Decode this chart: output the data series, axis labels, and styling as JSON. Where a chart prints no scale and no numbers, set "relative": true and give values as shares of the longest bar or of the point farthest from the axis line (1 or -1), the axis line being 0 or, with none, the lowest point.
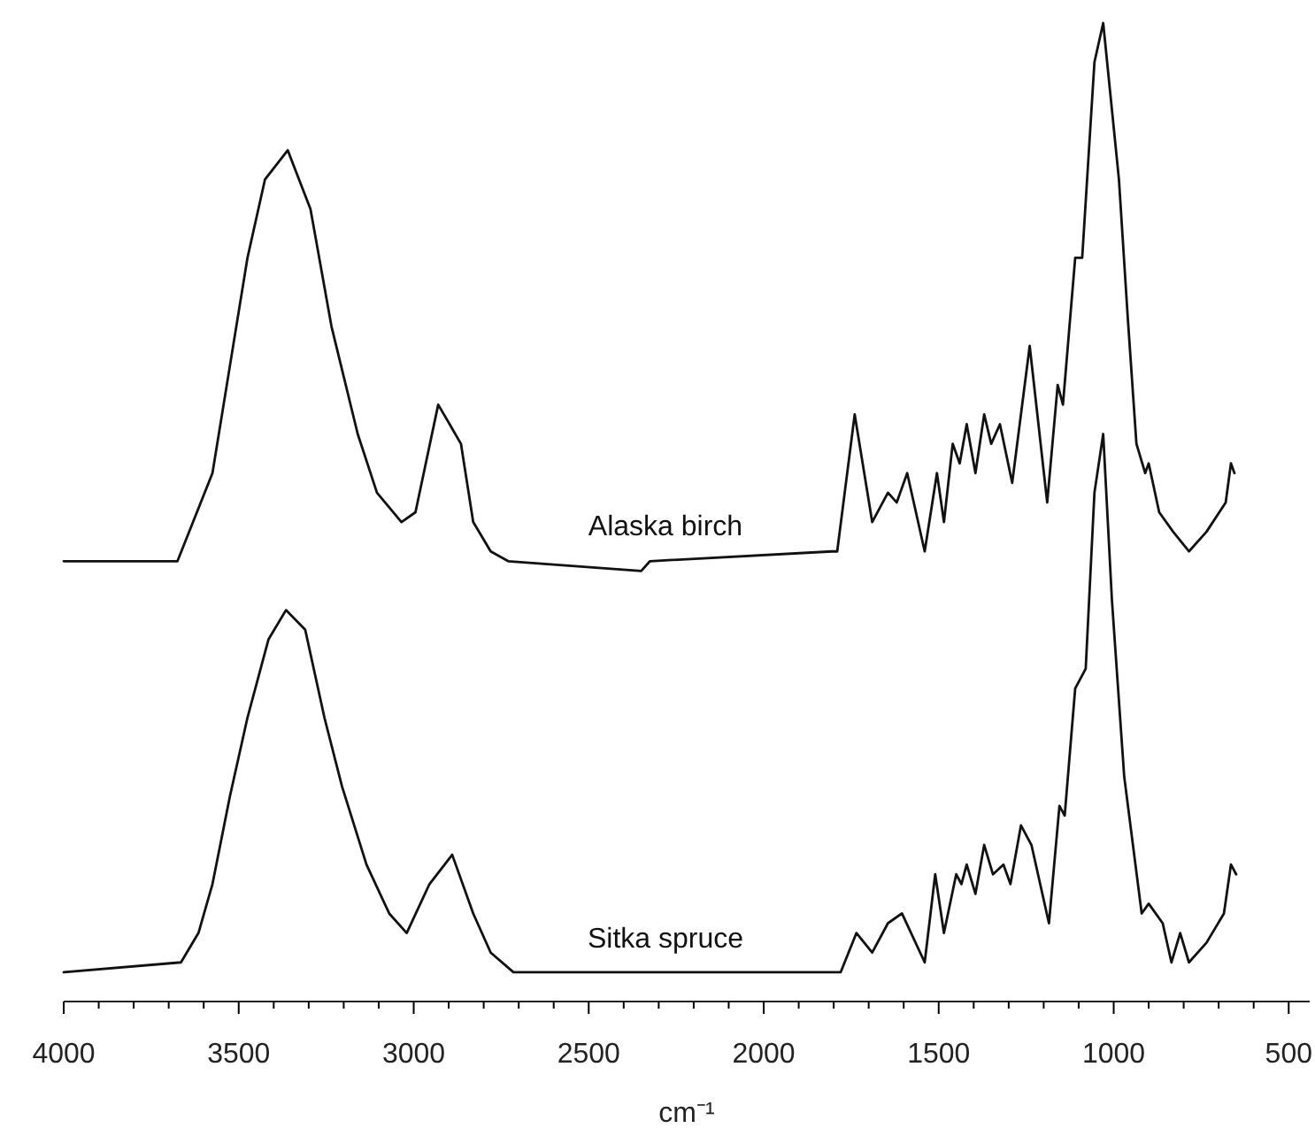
{
  "chart_data": {
    "type": "line",
    "relative": true,
    "xlabel": "cm⁻¹",
    "xlim": [
      4000,
      440
    ],
    "xticks": [
      4000,
      {
        "value": 3900,
        "label": null
      },
      {
        "value": 3800,
        "label": null
      },
      {
        "value": 3700,
        "label": null
      },
      {
        "value": 3600,
        "label": null
      },
      3500,
      {
        "value": 3400,
        "label": null
      },
      {
        "value": 3300,
        "label": null
      },
      {
        "value": 3200,
        "label": null
      },
      {
        "value": 3100,
        "label": null
      },
      3000,
      {
        "value": 2900,
        "label": null
      },
      {
        "value": 2800,
        "label": null
      },
      {
        "value": 2700,
        "label": null
      },
      {
        "value": 2600,
        "label": null
      },
      2500,
      {
        "value": 2400,
        "label": null
      },
      {
        "value": 2300,
        "label": null
      },
      {
        "value": 2200,
        "label": null
      },
      {
        "value": 2100,
        "label": null
      },
      2000,
      {
        "value": 1900,
        "label": null
      },
      {
        "value": 1800,
        "label": null
      },
      {
        "value": 1700,
        "label": null
      },
      {
        "value": 1600,
        "label": null
      },
      1500,
      {
        "value": 1400,
        "label": null
      },
      {
        "value": 1300,
        "label": null
      },
      {
        "value": 1200,
        "label": null
      },
      {
        "value": 1100,
        "label": null
      },
      1000,
      {
        "value": 900,
        "label": null
      },
      {
        "value": 800,
        "label": null
      },
      {
        "value": 700,
        "label": null
      },
      {
        "value": 600,
        "label": null
      },
      500
    ],
    "grid": false,
    "legend": false,
    "marker": "none",
    "line_style": "solid",
    "series": [
      {
        "name": "Alaska birch",
        "color": "#111111",
        "x": [
          4000,
          3690,
          3675,
          3575,
          3525,
          3475,
          3425,
          3360,
          3295,
          3235,
          3160,
          3105,
          3035,
          2995,
          2930,
          2865,
          2830,
          2780,
          2730,
          2350,
          2325,
          1805,
          1790,
          1740,
          1690,
          1645,
          1620,
          1590,
          1540,
          1505,
          1485,
          1460,
          1440,
          1420,
          1395,
          1370,
          1350,
          1325,
          1290,
          1240,
          1190,
          1160,
          1145,
          1110,
          1090,
          1055,
          1030,
          985,
          960,
          935,
          910,
          900,
          870,
          830,
          785,
          735,
          680,
          665,
          655
        ],
        "values": [
          0.45,
          0.45,
          0.45,
          0.54,
          0.65,
          0.76,
          0.84,
          0.87,
          0.81,
          0.69,
          0.58,
          0.52,
          0.49,
          0.5,
          0.61,
          0.57,
          0.49,
          0.46,
          0.45,
          0.44,
          0.45,
          0.46,
          0.46,
          0.6,
          0.49,
          0.52,
          0.51,
          0.54,
          0.46,
          0.54,
          0.49,
          0.57,
          0.55,
          0.59,
          0.54,
          0.6,
          0.57,
          0.59,
          0.53,
          0.67,
          0.51,
          0.63,
          0.61,
          0.76,
          0.76,
          0.96,
          1.0,
          0.84,
          0.7,
          0.57,
          0.54,
          0.55,
          0.5,
          0.48,
          0.46,
          0.48,
          0.51,
          0.55,
          0.54
        ]
      },
      {
        "name": "Sitka spruce",
        "color": "#111111",
        "x": [
          4000,
          3665,
          3615,
          3575,
          3525,
          3475,
          3415,
          3365,
          3310,
          3255,
          3205,
          3135,
          3070,
          3020,
          2955,
          2890,
          2830,
          2780,
          2715,
          2260,
          2145,
          1780,
          1735,
          1690,
          1645,
          1605,
          1540,
          1510,
          1485,
          1450,
          1435,
          1420,
          1395,
          1370,
          1345,
          1315,
          1295,
          1265,
          1235,
          1185,
          1155,
          1140,
          1110,
          1080,
          1055,
          1030,
          1005,
          970,
          920,
          900,
          860,
          835,
          810,
          785,
          735,
          685,
          665,
          650
        ],
        "values": [
          0.03,
          0.04,
          0.07,
          0.12,
          0.21,
          0.29,
          0.37,
          0.4,
          0.38,
          0.29,
          0.22,
          0.14,
          0.09,
          0.07,
          0.12,
          0.15,
          0.09,
          0.05,
          0.03,
          0.03,
          0.03,
          0.03,
          0.07,
          0.05,
          0.08,
          0.09,
          0.04,
          0.13,
          0.07,
          0.13,
          0.12,
          0.14,
          0.11,
          0.16,
          0.13,
          0.14,
          0.12,
          0.18,
          0.16,
          0.08,
          0.2,
          0.19,
          0.32,
          0.34,
          0.52,
          0.58,
          0.41,
          0.23,
          0.09,
          0.1,
          0.08,
          0.04,
          0.07,
          0.04,
          0.06,
          0.09,
          0.14,
          0.13
        ]
      }
    ]
  }
}
